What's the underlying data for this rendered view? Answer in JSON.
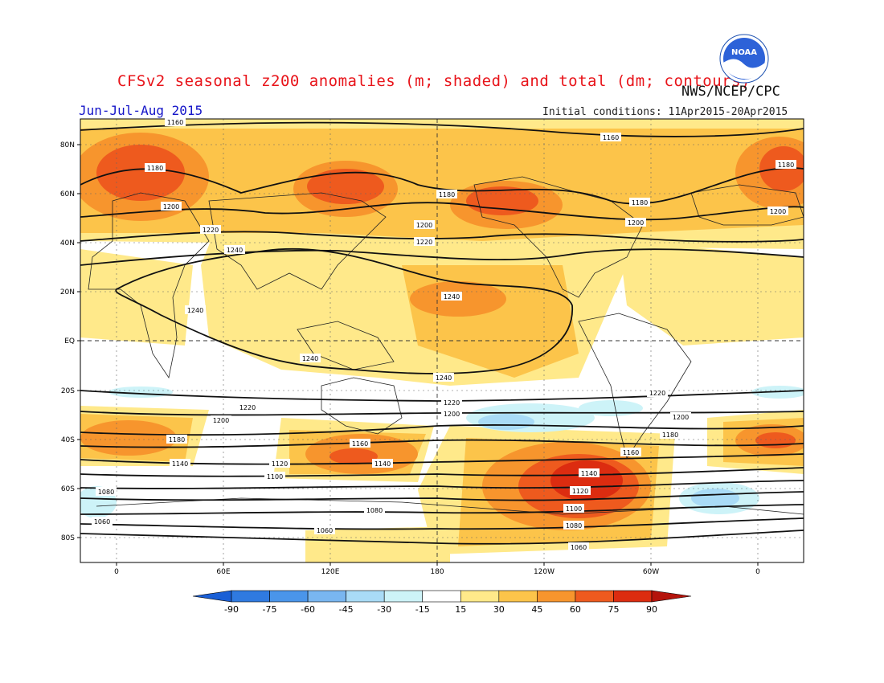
{
  "header": {
    "title": "CFSv2 seasonal z200 anomalies (m; shaded) and total (dm; contours)",
    "agency": "NWS/NCEP/CPC",
    "season": "Jun-Jul-Aug 2015",
    "initial_conditions": "Initial conditions: 11Apr2015-20Apr2015",
    "logo_text": "NOAA"
  },
  "map": {
    "lat_labels": [
      "80N",
      "60N",
      "40N",
      "20N",
      "EQ",
      "20S",
      "40S",
      "60S",
      "80S"
    ],
    "lon_labels": [
      "0",
      "60E",
      "120E",
      "180",
      "120W",
      "60W",
      "0"
    ],
    "contour_labels": [
      "1160",
      "1160",
      "1180",
      "1180",
      "1180",
      "1180",
      "1200",
      "1200",
      "1200",
      "1200",
      "1220",
      "1220",
      "1240",
      "1240",
      "1240",
      "1240",
      "1240",
      "1220",
      "1220",
      "1200",
      "1200",
      "1220",
      "1200",
      "1180",
      "1180",
      "1160",
      "1160",
      "1140",
      "1140",
      "1140",
      "1120",
      "1120",
      "1100",
      "1100",
      "1080",
      "1080",
      "1080",
      "1060",
      "1060",
      "1060"
    ]
  },
  "colorbar": {
    "ticks": [
      "-90",
      "-75",
      "-60",
      "-45",
      "-30",
      "-15",
      "15",
      "30",
      "45",
      "60",
      "75",
      "90"
    ],
    "colors": [
      "#1a5fd6",
      "#2f7ae0",
      "#4a95ea",
      "#79b6f0",
      "#a9dbf6",
      "#cdf3f8",
      "#ffffff",
      "#ffe98a",
      "#fcc44a",
      "#f7952d",
      "#ee5a1e",
      "#dc2c10",
      "#b4140c"
    ]
  }
}
